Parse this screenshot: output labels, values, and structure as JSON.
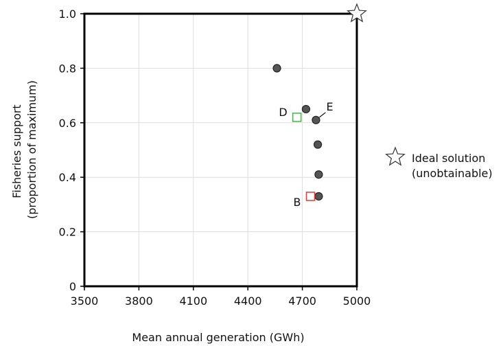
{
  "chart_data": {
    "type": "scatter",
    "xlabel": "Mean annual generation (GWh)",
    "ylabel_lines": [
      "Fisheries support",
      "(proportion of maximum)"
    ],
    "xlim": [
      3500,
      5000
    ],
    "ylim": [
      0,
      1.0
    ],
    "x_ticks": [
      3500,
      3800,
      4100,
      4400,
      4700,
      5000
    ],
    "x_tick_labels": [
      "3500",
      "3800",
      "4100",
      "4400",
      "4700",
      "5000"
    ],
    "y_ticks": [
      0,
      0.2,
      0.4,
      0.6,
      0.8,
      1.0
    ],
    "y_tick_labels": [
      "0",
      "0.2",
      "0.4",
      "0.6",
      "0.8",
      "1.0"
    ],
    "grid": true,
    "points": [
      {
        "x": 4560,
        "y": 0.8
      },
      {
        "x": 4720,
        "y": 0.65
      },
      {
        "x": 4775,
        "y": 0.61
      },
      {
        "x": 4785,
        "y": 0.52
      },
      {
        "x": 4790,
        "y": 0.41
      },
      {
        "x": 4790,
        "y": 0.33
      }
    ],
    "highlighted": [
      {
        "label": "D",
        "x": 4670,
        "y": 0.62,
        "color": "#4caf50"
      },
      {
        "label": "B",
        "x": 4745,
        "y": 0.33,
        "color": "#e53935"
      }
    ],
    "point_annotations": [
      {
        "label": "E",
        "x": 4775,
        "y": 0.61
      }
    ],
    "ideal": {
      "x": 5000,
      "y": 1.0
    },
    "legend": {
      "placement": "right",
      "items": [
        {
          "symbol": "star",
          "lines": [
            "Ideal solution",
            "(unobtainable)"
          ]
        }
      ]
    },
    "colors": {
      "point_fill": "#555555",
      "point_stroke": "#222222",
      "grid": "#dddddd",
      "axis": "#000000"
    }
  }
}
